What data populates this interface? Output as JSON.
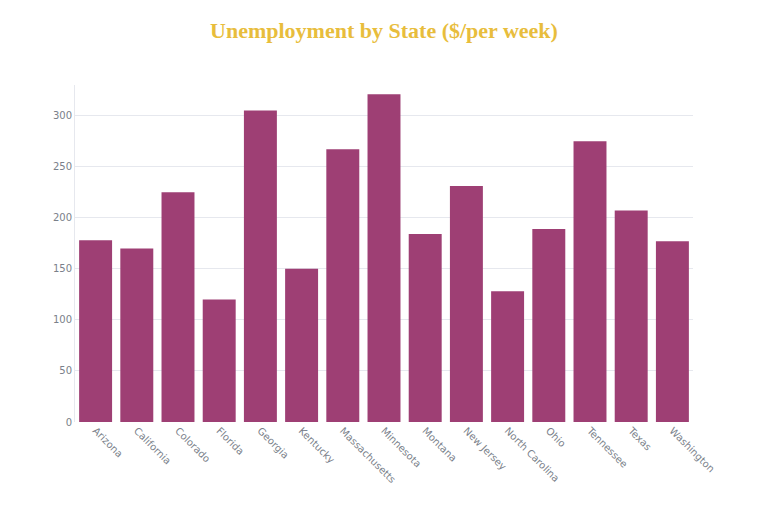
{
  "chart_data": {
    "type": "bar",
    "title": "Unemployment by State ($/per week)",
    "categories": [
      "Arizona",
      "California",
      "Colorado",
      "Florida",
      "Georgia",
      "Kentucky",
      "Massachusetts",
      "Minnesota",
      "Montana",
      "New Jersey",
      "North Carolina",
      "Ohio",
      "Tennessee",
      "Texas",
      "Washington"
    ],
    "values": [
      178,
      170,
      225,
      120,
      305,
      150,
      267,
      321,
      184,
      231,
      128,
      189,
      275,
      207,
      177
    ],
    "color": "#9e3f74",
    "ylim": [
      0,
      330
    ],
    "yticks": [
      0,
      50,
      100,
      150,
      200,
      250,
      300
    ],
    "grid": true
  }
}
